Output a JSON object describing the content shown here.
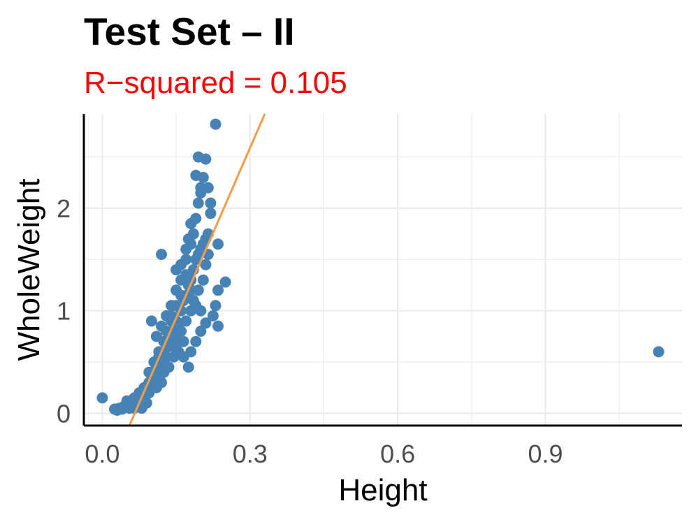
{
  "chart_data": {
    "type": "scatter",
    "title": "Test Set – II",
    "subtitle": "R−squared = 0.105",
    "xlabel": "Height",
    "ylabel": "WholeWeight",
    "xlim": [
      -0.0375,
      1.1775
    ],
    "ylim": [
      -0.12,
      2.92
    ],
    "x_ticks": [
      0.0,
      0.3,
      0.6,
      0.9
    ],
    "x_tick_labels": [
      "0.0",
      "0.3",
      "0.6",
      "0.9"
    ],
    "y_ticks": [
      0,
      1,
      2
    ],
    "y_tick_labels": [
      "0",
      "1",
      "2"
    ],
    "grid": true,
    "legend": "none",
    "colors": {
      "points": "#4682b4",
      "fit_line": "#f39c4a",
      "subtitle": "#ff0000"
    },
    "fit_line": {
      "x": [
        0.055,
        0.33
      ],
      "y": [
        -0.12,
        2.92
      ]
    },
    "points": [
      [
        0.0,
        0.15
      ],
      [
        0.025,
        0.04
      ],
      [
        0.03,
        0.03
      ],
      [
        0.035,
        0.05
      ],
      [
        0.04,
        0.04
      ],
      [
        0.045,
        0.07
      ],
      [
        0.05,
        0.12
      ],
      [
        0.055,
        0.1
      ],
      [
        0.06,
        0.08
      ],
      [
        0.065,
        0.15
      ],
      [
        0.07,
        0.1
      ],
      [
        0.075,
        0.2
      ],
      [
        0.08,
        0.15
      ],
      [
        0.085,
        0.25
      ],
      [
        0.09,
        0.2
      ],
      [
        0.095,
        0.3
      ],
      [
        0.1,
        0.4
      ],
      [
        0.105,
        0.35
      ],
      [
        0.11,
        0.45
      ],
      [
        0.115,
        0.55
      ],
      [
        0.12,
        0.5
      ],
      [
        0.125,
        0.6
      ],
      [
        0.13,
        0.7
      ],
      [
        0.135,
        0.65
      ],
      [
        0.14,
        0.8
      ],
      [
        0.145,
        0.75
      ],
      [
        0.15,
        0.9
      ],
      [
        0.155,
        0.85
      ],
      [
        0.16,
        1.0
      ],
      [
        0.165,
        1.1
      ],
      [
        0.17,
        1.15
      ],
      [
        0.175,
        1.25
      ],
      [
        0.18,
        1.3
      ],
      [
        0.185,
        1.4
      ],
      [
        0.19,
        1.5
      ],
      [
        0.195,
        1.55
      ],
      [
        0.2,
        1.6
      ],
      [
        0.205,
        1.65
      ],
      [
        0.21,
        1.7
      ],
      [
        0.215,
        1.75
      ],
      [
        0.12,
        0.85
      ],
      [
        0.13,
        0.95
      ],
      [
        0.14,
        1.05
      ],
      [
        0.15,
        1.2
      ],
      [
        0.16,
        1.3
      ],
      [
        0.17,
        1.5
      ],
      [
        0.175,
        1.7
      ],
      [
        0.18,
        1.85
      ],
      [
        0.19,
        1.9
      ],
      [
        0.195,
        2.05
      ],
      [
        0.2,
        2.2
      ],
      [
        0.205,
        2.3
      ],
      [
        0.21,
        2.48
      ],
      [
        0.215,
        2.2
      ],
      [
        0.195,
        2.5
      ],
      [
        0.23,
        2.82
      ],
      [
        0.19,
        2.32
      ],
      [
        0.2,
        2.15
      ],
      [
        0.22,
        2.05
      ],
      [
        0.22,
        1.95
      ],
      [
        0.235,
        1.65
      ],
      [
        0.25,
        1.28
      ],
      [
        0.235,
        1.2
      ],
      [
        0.23,
        1.05
      ],
      [
        0.235,
        0.85
      ],
      [
        0.225,
        0.95
      ],
      [
        0.21,
        0.88
      ],
      [
        0.2,
        0.8
      ],
      [
        0.19,
        0.7
      ],
      [
        0.18,
        0.6
      ],
      [
        0.175,
        0.45
      ],
      [
        0.165,
        0.55
      ],
      [
        0.155,
        0.6
      ],
      [
        0.145,
        0.55
      ],
      [
        0.135,
        0.45
      ],
      [
        0.125,
        0.4
      ],
      [
        0.115,
        0.35
      ],
      [
        0.1,
        0.3
      ],
      [
        0.095,
        0.2
      ],
      [
        0.085,
        0.15
      ],
      [
        0.075,
        0.1
      ],
      [
        0.065,
        0.05
      ],
      [
        0.055,
        0.05
      ],
      [
        0.12,
        1.55
      ],
      [
        0.1,
        0.9
      ],
      [
        0.11,
        0.75
      ],
      [
        0.14,
        0.95
      ],
      [
        0.16,
        0.8
      ],
      [
        0.17,
        0.9
      ],
      [
        0.185,
        1.1
      ],
      [
        0.195,
        1.2
      ],
      [
        0.205,
        1.3
      ],
      [
        0.21,
        1.45
      ],
      [
        0.215,
        1.55
      ],
      [
        0.2,
        1.0
      ],
      [
        0.19,
        1.05
      ],
      [
        0.18,
        1.0
      ],
      [
        0.165,
        0.7
      ],
      [
        0.155,
        0.7
      ],
      [
        0.145,
        0.65
      ],
      [
        0.13,
        0.55
      ],
      [
        0.12,
        0.3
      ],
      [
        0.11,
        0.25
      ],
      [
        0.09,
        0.1
      ],
      [
        0.08,
        0.05
      ],
      [
        0.15,
        1.4
      ],
      [
        0.16,
        1.45
      ],
      [
        0.17,
        1.6
      ],
      [
        0.18,
        1.65
      ],
      [
        0.185,
        1.75
      ],
      [
        0.18,
        1.2
      ],
      [
        0.17,
        1.35
      ],
      [
        0.16,
        1.15
      ],
      [
        0.15,
        1.05
      ],
      [
        0.14,
        0.9
      ],
      [
        0.13,
        0.8
      ],
      [
        0.125,
        0.7
      ],
      [
        0.115,
        0.6
      ],
      [
        0.105,
        0.5
      ],
      [
        0.095,
        0.4
      ],
      [
        1.13,
        0.6
      ]
    ]
  }
}
